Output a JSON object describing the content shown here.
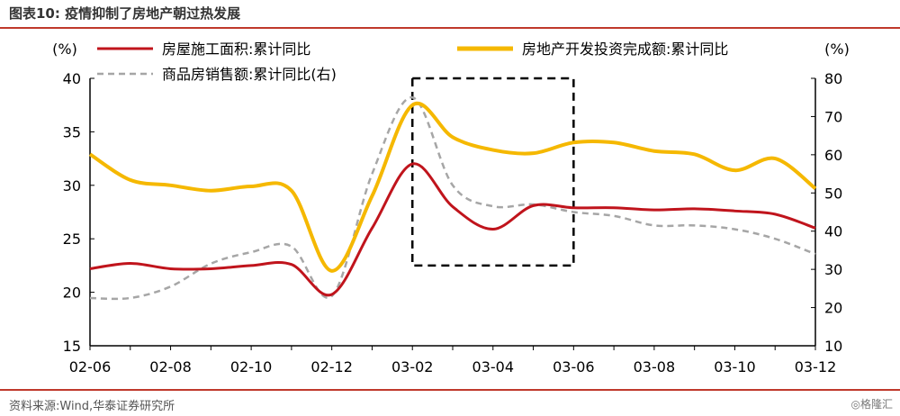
{
  "header": {
    "title": "图表10:  疫情抑制了房地产朝过热发展"
  },
  "footer": {
    "source": "资料来源:Wind,华泰证券研究所",
    "watermark": "◎格隆汇"
  },
  "chart_data": {
    "type": "line",
    "x": [
      "02-06",
      "02-07",
      "02-08",
      "02-09",
      "02-10",
      "02-11",
      "02-12",
      "03-01",
      "03-02",
      "03-03",
      "03-04",
      "03-05",
      "03-06",
      "03-07",
      "03-08",
      "03-09",
      "03-10",
      "03-11",
      "03-12"
    ],
    "x_tick_labels": [
      "02-06",
      "02-08",
      "02-10",
      "02-12",
      "03-02",
      "03-04",
      "03-06",
      "03-08",
      "03-10",
      "03-12"
    ],
    "y_left": {
      "unit": "(%)",
      "ylim": [
        15,
        40
      ],
      "ticks": [
        15,
        20,
        25,
        30,
        35,
        40
      ]
    },
    "y_right": {
      "unit": "(%)",
      "ylim": [
        10,
        80
      ],
      "ticks": [
        10,
        20,
        30,
        40,
        50,
        60,
        70,
        80
      ]
    },
    "series": [
      {
        "name": "房屋施工面积:累计同比",
        "axis": "left",
        "color": "#c0141c",
        "style": "solid",
        "values": [
          22.2,
          22.7,
          22.2,
          22.2,
          22.5,
          22.6,
          19.8,
          26.0,
          32.0,
          28.0,
          25.9,
          28.1,
          27.9,
          27.9,
          27.7,
          27.8,
          27.6,
          27.3,
          26.0
        ]
      },
      {
        "name": "房地产开发投资完成额:累计同比",
        "axis": "left",
        "color": "#f5b800",
        "style": "solid",
        "values": [
          32.9,
          30.5,
          30.0,
          29.5,
          29.9,
          29.5,
          22.0,
          29.0,
          37.5,
          34.5,
          33.3,
          33.0,
          34.0,
          34.0,
          33.2,
          32.9,
          31.4,
          32.5,
          29.7
        ]
      },
      {
        "name": "商品房销售额:累计同比(右)",
        "axis": "right",
        "color": "#a6a6a6",
        "style": "dashed",
        "values": [
          22.5,
          22.5,
          25.5,
          31.5,
          34.5,
          36.0,
          23.0,
          55.0,
          75.0,
          52.0,
          46.5,
          47.0,
          45.0,
          44.0,
          41.5,
          41.5,
          40.5,
          38.0,
          34.0
        ]
      }
    ],
    "legend_position": "top",
    "annotation": "dashed-box-03-02-to-03-06"
  }
}
